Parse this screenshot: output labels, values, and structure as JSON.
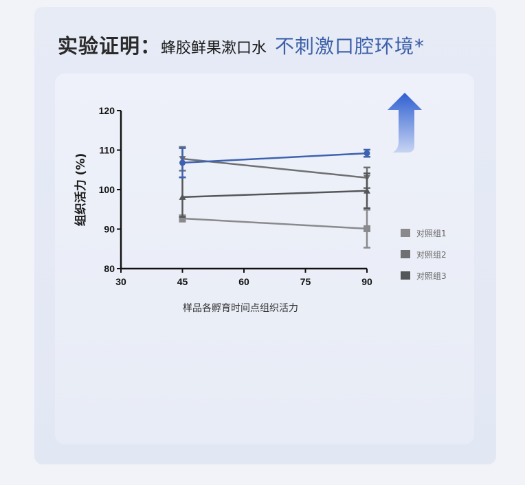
{
  "header": {
    "title_bold": "实验证明：",
    "title_product": "蜂胶鲜果漱口水",
    "title_claim": "不刺激口腔环境*"
  },
  "colors": {
    "accent": "#3b5fa8",
    "series_sample": "#3d62b0",
    "group1": "#8a8a8d",
    "group2": "#6f7073",
    "group3": "#555658"
  },
  "decor": {
    "arrow_icon": "up-arrow-blue"
  },
  "chart_data": {
    "type": "line",
    "title": "",
    "xlabel": "样品各孵育时间点组织活力",
    "ylabel": "组织活力 (%)",
    "xlim": [
      30,
      90
    ],
    "ylim": [
      80,
      120
    ],
    "xticks": [
      30,
      45,
      60,
      75,
      90
    ],
    "yticks": [
      80,
      90,
      100,
      110,
      120
    ],
    "grid": false,
    "legend_position": "right",
    "x": [
      45,
      90
    ],
    "series": [
      {
        "name": "",
        "marker": "circle",
        "color": "#3d62b0",
        "values": [
          106.8,
          109.2
        ],
        "errors": [
          3.7,
          0.9
        ]
      },
      {
        "name": "对照组1",
        "marker": "square",
        "color": "#8a8a8d",
        "values": [
          92.7,
          90.1
        ],
        "errors": [
          0.8,
          4.8
        ]
      },
      {
        "name": "对照组2",
        "marker": "triangle-down",
        "color": "#6f7073",
        "values": [
          107.8,
          103.0
        ],
        "errors": [
          3.0,
          2.6
        ]
      },
      {
        "name": "对照组3",
        "marker": "triangle-up",
        "color": "#555658",
        "values": [
          98.1,
          99.7
        ],
        "errors": [
          5.0,
          4.4
        ]
      }
    ]
  }
}
